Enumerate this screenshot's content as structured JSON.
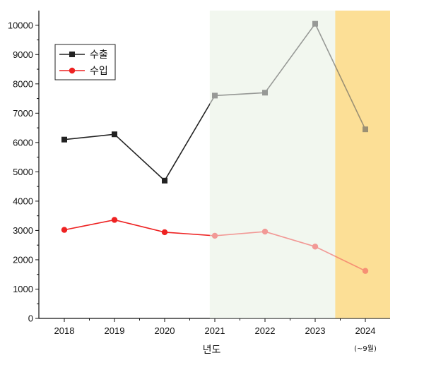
{
  "chart_data": {
    "type": "line",
    "title": "",
    "xlabel": "년도",
    "ylabel": "",
    "categories": [
      "2018",
      "2019",
      "2020",
      "2021",
      "2022",
      "2023",
      "2024"
    ],
    "x_note": "(~9월)",
    "ylim": [
      0,
      10500
    ],
    "yticks": [
      0,
      1000,
      2000,
      3000,
      4000,
      5000,
      6000,
      7000,
      8000,
      9000,
      10000
    ],
    "grid": false,
    "legend_position": "top-left",
    "series": [
      {
        "name": "수출",
        "marker": "square",
        "color": "#222222",
        "values": [
          6100,
          6280,
          4700,
          7600,
          7700,
          10050,
          6450
        ]
      },
      {
        "name": "수입",
        "marker": "circle",
        "color": "#ee2222",
        "values": [
          3020,
          3360,
          2940,
          2820,
          2960,
          2450,
          1620
        ]
      }
    ],
    "shaded_regions": [
      {
        "from": 2020.9,
        "to": 2023.4,
        "color": "#eef6ea"
      },
      {
        "from": 2023.4,
        "to": 2024.5,
        "color": "#fbd46e"
      }
    ]
  }
}
